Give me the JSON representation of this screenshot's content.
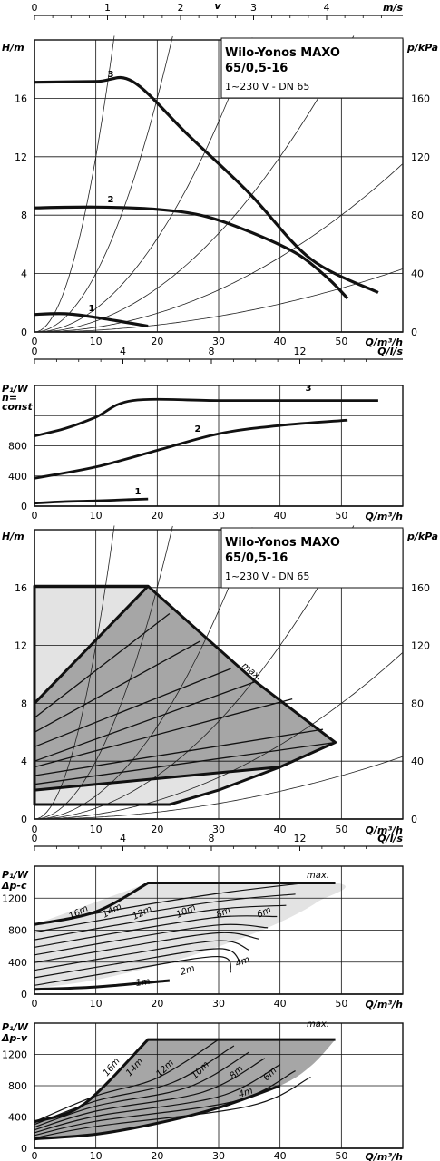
{
  "title_line1": "Wilo-Yonos MAXO",
  "title_line2": "65/0,5-16",
  "subtitle": "1~230 V - DN 65",
  "chart_data": [
    {
      "id": "hq",
      "type": "line",
      "xlabel": "Q/m³/h",
      "ylabel": "H/m",
      "y2label": "p/kPa",
      "top_axis_name": "v",
      "top_axis_unit": "m/s",
      "xlim": [
        0,
        60
      ],
      "ylim": [
        0,
        20
      ],
      "x_ticks": [
        "0",
        "10",
        "20",
        "30",
        "40",
        "50"
      ],
      "y_ticks": [
        "0",
        "4",
        "8",
        "12",
        "16"
      ],
      "y2_ticks": [
        "0",
        "40",
        "80",
        "120",
        "160"
      ],
      "top_ticks": [
        "0",
        "1",
        "2",
        "3",
        "4"
      ],
      "series": [
        {
          "name": "1",
          "points": [
            [
              0,
              1.2
            ],
            [
              5,
              1.25
            ],
            [
              10,
              1.0
            ],
            [
              15,
              0.65
            ],
            [
              18.5,
              0.4
            ]
          ]
        },
        {
          "name": "2",
          "points": [
            [
              0,
              8.5
            ],
            [
              10,
              8.55
            ],
            [
              20,
              8.4
            ],
            [
              28,
              7.9
            ],
            [
              36,
              6.7
            ],
            [
              43,
              5.3
            ],
            [
              48,
              3.6
            ],
            [
              51,
              2.3
            ]
          ]
        },
        {
          "name": "3",
          "points": [
            [
              0,
              17.1
            ],
            [
              10,
              17.15
            ],
            [
              16,
              17.15
            ],
            [
              25,
              13.5
            ],
            [
              35,
              9.5
            ],
            [
              45,
              5.0
            ],
            [
              56,
              2.7
            ]
          ]
        }
      ]
    },
    {
      "id": "p1",
      "type": "line",
      "xlabel": "Q/m³/h",
      "ylabel": "P₁/W",
      "ylabel2": "n=",
      "ylabel3": "const",
      "top_axis_unit": "Q/l/s",
      "xlim": [
        0,
        60
      ],
      "ylim": [
        0,
        1600
      ],
      "x_ticks": [
        "0",
        "10",
        "20",
        "30",
        "40",
        "50"
      ],
      "y_ticks": [
        "0",
        "400",
        "800"
      ],
      "top_ticks": [
        "0",
        "4",
        "8",
        "12"
      ],
      "series": [
        {
          "name": "1",
          "points": [
            [
              0,
              40
            ],
            [
              5,
              60
            ],
            [
              10,
              70
            ],
            [
              15,
              85
            ],
            [
              18.5,
              95
            ]
          ]
        },
        {
          "name": "2",
          "points": [
            [
              0,
              370
            ],
            [
              10,
              520
            ],
            [
              20,
              740
            ],
            [
              30,
              960
            ],
            [
              40,
              1070
            ],
            [
              51,
              1140
            ]
          ]
        },
        {
          "name": "3",
          "points": [
            [
              0,
              930
            ],
            [
              5,
              1030
            ],
            [
              10,
              1180
            ],
            [
              16,
              1400
            ],
            [
              30,
              1400
            ],
            [
              45,
              1400
            ],
            [
              56,
              1400
            ]
          ]
        }
      ]
    },
    {
      "id": "field",
      "type": "area",
      "xlabel": "Q/m³/h",
      "ylabel": "H/m",
      "y2label": "p/kPa",
      "xlim": [
        0,
        60
      ],
      "ylim": [
        0,
        20
      ],
      "x_ticks": [
        "0",
        "10",
        "20",
        "30",
        "40",
        "50"
      ],
      "y_ticks": [
        "0",
        "4",
        "8",
        "12",
        "16"
      ],
      "y2_ticks": [
        "0",
        "40",
        "80",
        "120",
        "160"
      ],
      "annotation": "max.",
      "envelope": [
        [
          0,
          16.1
        ],
        [
          18.5,
          16.1
        ],
        [
          36,
          9.5
        ],
        [
          49,
          5.3
        ],
        [
          40,
          3.6
        ],
        [
          30,
          2.0
        ],
        [
          22,
          1.0
        ],
        [
          0,
          1.0
        ]
      ],
      "light_region": [
        [
          0,
          16.1
        ],
        [
          18.5,
          16.1
        ],
        [
          0,
          8.0
        ]
      ],
      "lower_light": [
        [
          0,
          2.0
        ],
        [
          40,
          3.6
        ],
        [
          30,
          2.0
        ],
        [
          22,
          1.0
        ],
        [
          0,
          1.0
        ]
      ],
      "curves": [
        {
          "points": [
            [
              0,
              8
            ],
            [
              18.5,
              16.1
            ]
          ]
        },
        {
          "points": [
            [
              0,
              7
            ],
            [
              22,
              14.2
            ]
          ]
        },
        {
          "points": [
            [
              0,
              6
            ],
            [
              27,
              12.3
            ]
          ]
        },
        {
          "points": [
            [
              0,
              5
            ],
            [
              32,
              10.4
            ]
          ]
        },
        {
          "points": [
            [
              0,
              4
            ],
            [
              36,
              9.5
            ]
          ]
        },
        {
          "points": [
            [
              0,
              3.6
            ],
            [
              42,
              8.3
            ]
          ]
        },
        {
          "points": [
            [
              0,
              3
            ],
            [
              47,
              6.2
            ]
          ]
        },
        {
          "points": [
            [
              0,
              2.4
            ],
            [
              49,
              5.3
            ]
          ]
        },
        {
          "points": [
            [
              0,
              2.0
            ],
            [
              40,
              3.6
            ]
          ]
        },
        {
          "points": [
            [
              0,
              1.0
            ],
            [
              22,
              1.0
            ]
          ]
        }
      ]
    },
    {
      "id": "pc",
      "type": "area",
      "xlabel": "Q/m³/h",
      "ylabel": "P₁/W",
      "ylabel2": "Δp-c",
      "top_axis_unit": "Q/l/s",
      "xlim": [
        0,
        60
      ],
      "ylim": [
        0,
        1600
      ],
      "x_ticks": [
        "0",
        "10",
        "20",
        "30",
        "40",
        "50"
      ],
      "y_ticks": [
        "0",
        "400",
        "800",
        "1200"
      ],
      "top_ticks": [
        "0",
        "4",
        "8",
        "12"
      ],
      "annotation": "max.",
      "curve_labels": [
        "16m",
        "14m",
        "12m",
        "10m",
        "8m",
        "6m",
        "4m",
        "2m",
        "1m"
      ]
    },
    {
      "id": "pv",
      "type": "area",
      "xlabel": "Q/m³/h",
      "ylabel": "P₁/W",
      "ylabel2": "Δp-v",
      "xlim": [
        0,
        60
      ],
      "ylim": [
        0,
        1600
      ],
      "x_ticks": [
        "0",
        "10",
        "20",
        "30",
        "40",
        "50"
      ],
      "y_ticks": [
        "0",
        "400",
        "800",
        "1200"
      ],
      "annotation": "max.",
      "curve_labels": [
        "16m",
        "14m",
        "12m",
        "10m",
        "8m",
        "6m",
        "4m"
      ]
    }
  ]
}
